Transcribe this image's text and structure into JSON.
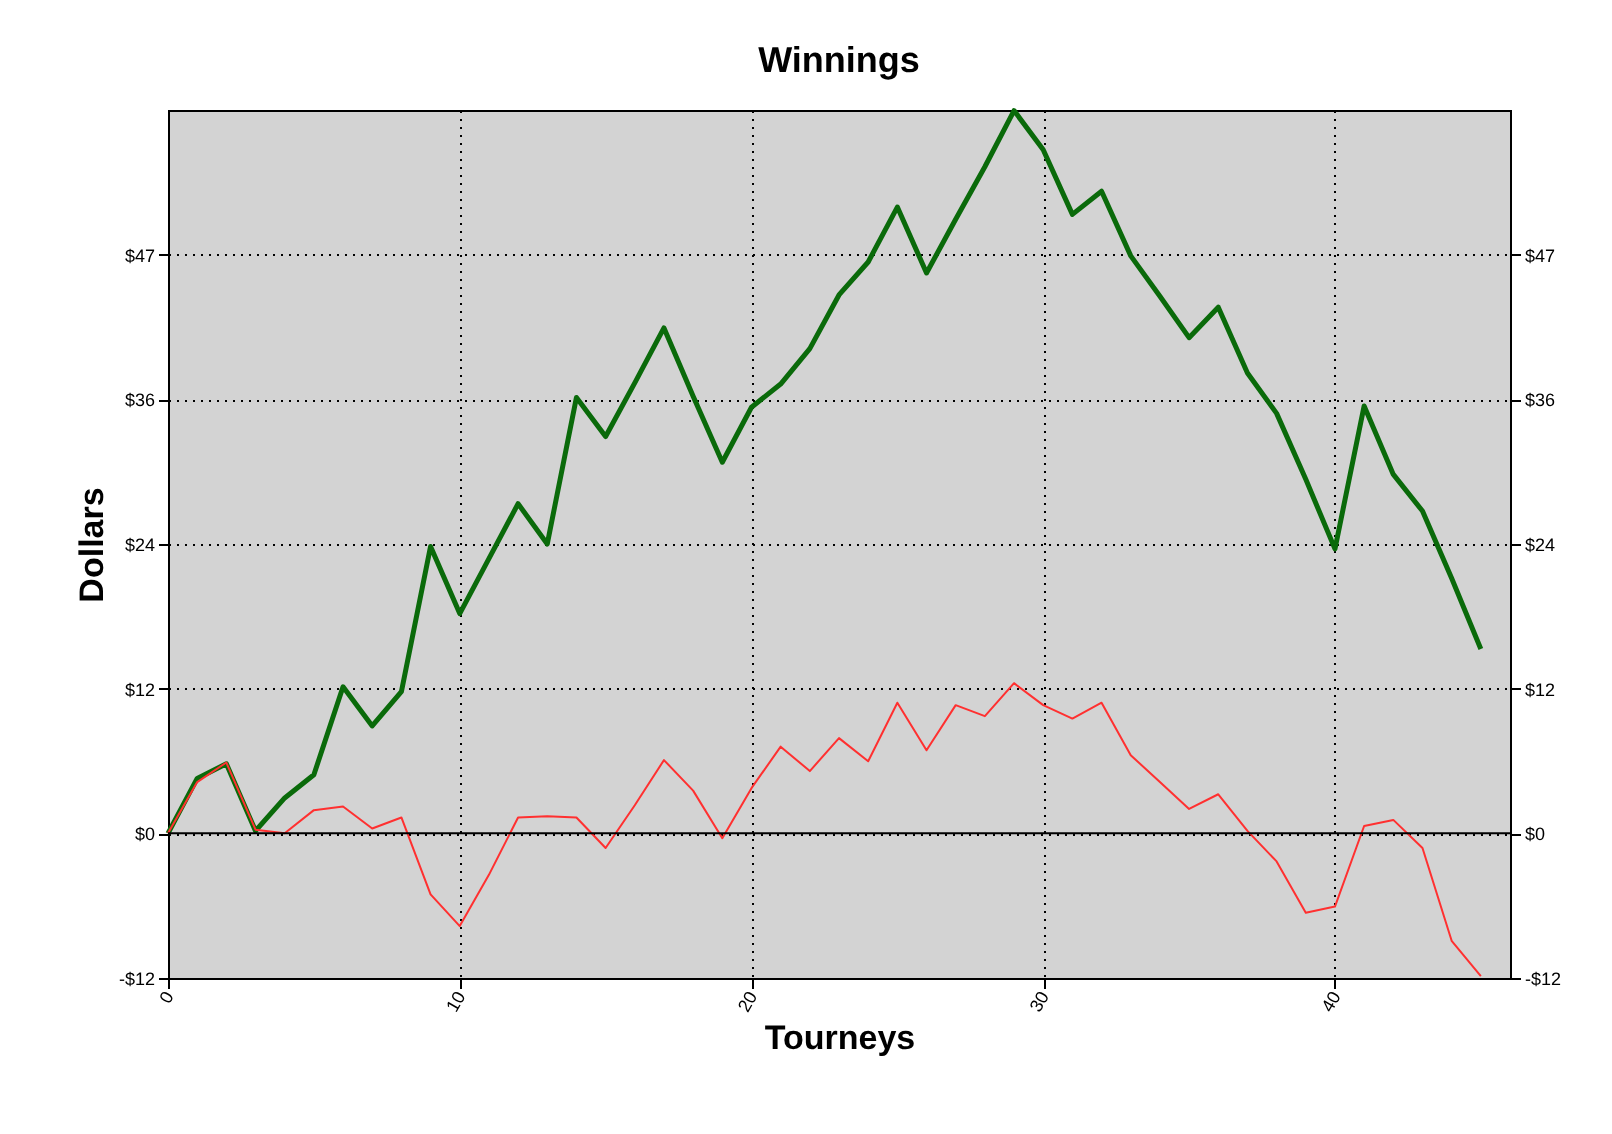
{
  "chart_data": {
    "type": "line",
    "title": "Winnings",
    "xlabel": "Tourneys",
    "ylabel": "Dollars",
    "x": [
      0,
      1,
      2,
      3,
      4,
      5,
      6,
      7,
      8,
      9,
      10,
      11,
      12,
      13,
      14,
      15,
      16,
      17,
      18,
      19,
      20,
      21,
      22,
      23,
      24,
      25,
      26,
      27,
      28,
      29,
      30,
      31,
      32,
      33,
      34,
      35,
      36,
      37,
      38,
      39,
      40,
      41,
      42,
      43,
      44,
      45
    ],
    "series": [
      {
        "color": "#0a6a0a",
        "values": [
          0,
          4.5,
          5.7,
          0.2,
          2.9,
          4.8,
          12.0,
          8.8,
          11.6,
          23.5,
          18.0,
          22.5,
          27.0,
          23.7,
          35.7,
          32.5,
          36.9,
          41.4,
          35.8,
          30.4,
          34.9,
          36.8,
          39.7,
          44.1,
          46.8,
          51.3,
          45.9,
          50.3,
          54.6,
          59.2,
          56.0,
          50.7,
          52.6,
          47.3,
          44.0,
          40.6,
          43.1,
          37.7,
          34.4,
          29.0,
          23.3,
          35.0,
          29.4,
          26.4,
          20.9,
          15.1
        ]
      },
      {
        "color": "#ff3030",
        "values": [
          0,
          4.2,
          5.8,
          0.3,
          0,
          1.9,
          2.2,
          0.4,
          1.3,
          -5.0,
          -7.6,
          -3.4,
          1.3,
          1.4,
          1.3,
          -1.2,
          2.3,
          6.0,
          3.5,
          -0.4,
          3.7,
          7.1,
          5.1,
          7.8,
          5.9,
          10.7,
          6.8,
          10.5,
          9.6,
          12.3,
          10.5,
          9.4,
          10.7,
          6.4,
          4.2,
          2.0,
          3.2,
          0.2,
          -2.3,
          -6.5,
          -6.0,
          0.6,
          1.1,
          -1.2,
          -8.8,
          -11.7
        ]
      }
    ],
    "xlim": [
      0,
      46
    ],
    "xticks": [
      0,
      10,
      20,
      30,
      40
    ],
    "ylim": [
      -11.85,
      59.25
    ],
    "yticks": [
      {
        "value": -11.85,
        "label": "-$12"
      },
      {
        "value": 0,
        "label": "$0"
      },
      {
        "value": 11.85,
        "label": "$12"
      },
      {
        "value": 23.7,
        "label": "$24"
      },
      {
        "value": 35.55,
        "label": "$36"
      },
      {
        "value": 47.4,
        "label": "$47"
      }
    ],
    "y2lim": [
      -11.85,
      59.25
    ],
    "y2ticks": [
      {
        "value": -11.85,
        "label": "-$12"
      },
      {
        "value": 0,
        "label": "$0"
      },
      {
        "value": 11.85,
        "label": "$12"
      },
      {
        "value": 23.7,
        "label": "$24"
      },
      {
        "value": 35.55,
        "label": "$36"
      },
      {
        "value": 47.4,
        "label": "$47"
      }
    ],
    "ref_lines": [
      {
        "axis": "y2",
        "value": 0,
        "color": "#000000"
      }
    ],
    "grid": true,
    "marker": "none",
    "line_style": "solid"
  }
}
